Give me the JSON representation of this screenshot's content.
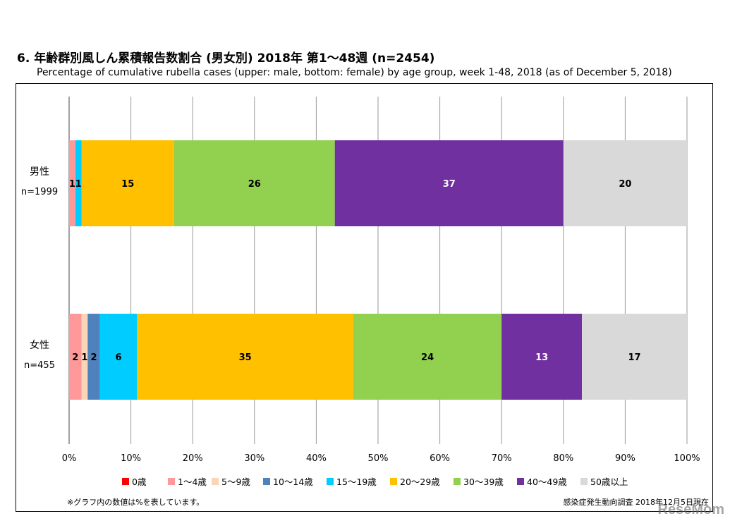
{
  "chart_data": {
    "type": "bar",
    "orientation": "horizontal-stacked-100",
    "title": "6. 年齢群別風しん累積報告数割合 (男女別)  2018年 第1～48週 (n=2454)",
    "subtitle": "Percentage of cumulative rubella cases (upper: male, bottom: female) by age group, week 1-48, 2018 (as of December 5, 2018)",
    "categories": [
      {
        "label": "男性",
        "n_label": "n=1999"
      },
      {
        "label": "女性",
        "n_label": "n=455"
      }
    ],
    "series": [
      {
        "name": "0歳",
        "color": "#ff0000",
        "values": [
          0,
          0
        ],
        "labels": [
          "",
          ""
        ]
      },
      {
        "name": "1～4歳",
        "color": "#ff9999",
        "values": [
          1,
          2
        ],
        "labels": [
          "1",
          "2"
        ]
      },
      {
        "name": "5～9歳",
        "color": "#fbd5b5",
        "values": [
          0,
          1
        ],
        "labels": [
          "",
          "1"
        ]
      },
      {
        "name": "10～14歳",
        "color": "#4f81bd",
        "values": [
          0,
          2
        ],
        "labels": [
          "",
          "2"
        ]
      },
      {
        "name": "15～19歳",
        "color": "#00ccff",
        "values": [
          1,
          6
        ],
        "labels": [
          "1",
          "6"
        ]
      },
      {
        "name": "20～29歳",
        "color": "#ffc000",
        "values": [
          15,
          35
        ],
        "labels": [
          "15",
          "35"
        ]
      },
      {
        "name": "30～39歳",
        "color": "#92d050",
        "values": [
          26,
          24
        ],
        "labels": [
          "26",
          "24"
        ]
      },
      {
        "name": "40～49歳",
        "color": "#7030a0",
        "values": [
          37,
          13
        ],
        "labels": [
          "37",
          "13"
        ]
      },
      {
        "name": "50歳以上",
        "color": "#d9d9d9",
        "values": [
          20,
          17
        ],
        "labels": [
          "20",
          "17"
        ]
      }
    ],
    "xlim": [
      0,
      100
    ],
    "x_ticks": [
      "0%",
      "10%",
      "20%",
      "30%",
      "40%",
      "50%",
      "60%",
      "70%",
      "80%",
      "90%",
      "100%"
    ],
    "grid": true,
    "legend": "bottom"
  },
  "footer": {
    "note": "※グラフ内の数値は%を表しています。",
    "source": "感染症発生動向調査 2018年12月5日現在",
    "watermark": "ReseMom"
  }
}
